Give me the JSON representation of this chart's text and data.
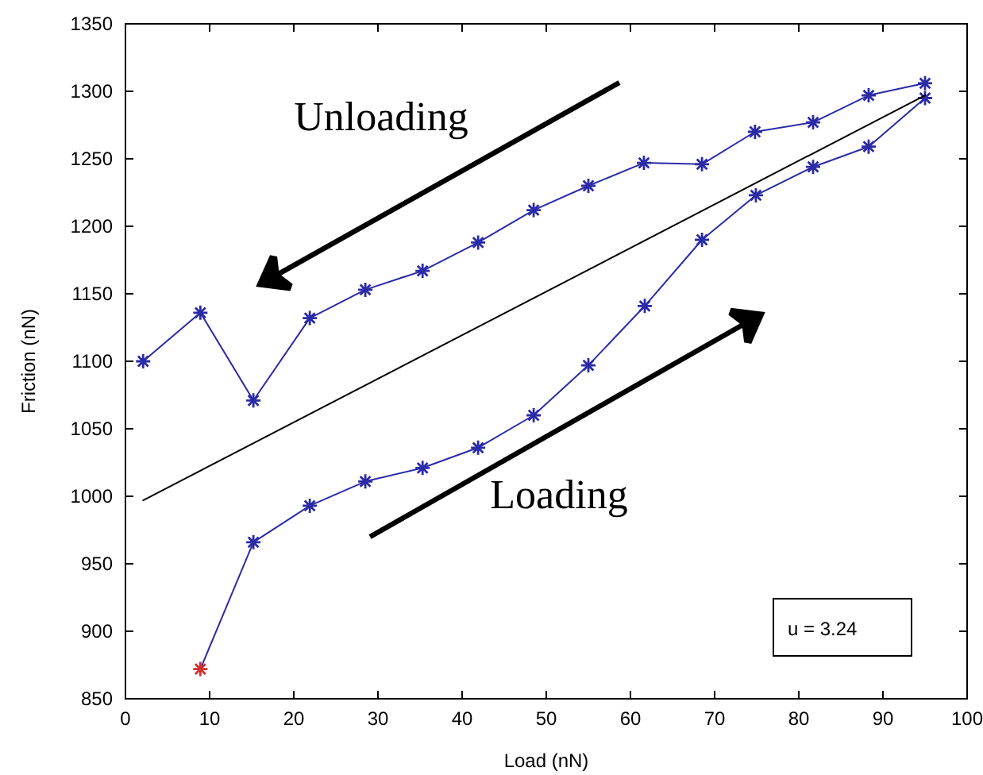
{
  "chart_data": {
    "type": "line",
    "xlabel": "Load (nN)",
    "ylabel": "Friction (nN)",
    "xlim": [
      0,
      100
    ],
    "xticks": [
      0,
      10,
      20,
      30,
      40,
      50,
      60,
      70,
      80,
      90,
      {
        "value": 100,
        "label": "100"
      }
    ],
    "ylim": [
      850,
      1350
    ],
    "yticks": [
      850,
      900,
      950,
      1000,
      1050,
      1100,
      1150,
      1200,
      1250,
      1300,
      1350
    ],
    "grid": false,
    "marker": "cross",
    "line_style": "solid",
    "series": [
      {
        "color": "#2b2ba8",
        "x": [
          2.1,
          8.9,
          15.2,
          21.9,
          28.5,
          35.3,
          41.9,
          48.5,
          55.0,
          61.6,
          68.5,
          74.8,
          81.7,
          88.3,
          95.0
        ],
        "values": [
          1100,
          1136,
          1071,
          1132,
          1153,
          1167,
          1188,
          1212,
          1230,
          1247,
          1246,
          1270,
          1277,
          1297,
          1306
        ]
      },
      {
        "color": "#2b2ba8",
        "colors": [
          "#d03030",
          "#2b2ba8",
          "#2b2ba8",
          "#2b2ba8",
          "#2b2ba8",
          "#2b2ba8",
          "#2b2ba8",
          "#2b2ba8",
          "#2b2ba8",
          "#2b2ba8",
          "#2b2ba8",
          "#2b2ba8",
          "#2b2ba8",
          "#2b2ba8"
        ],
        "x": [
          8.9,
          15.2,
          21.9,
          28.5,
          35.3,
          41.9,
          48.5,
          55.0,
          61.7,
          68.5,
          74.9,
          81.7,
          88.3,
          95.0
        ],
        "values": [
          872,
          966,
          993,
          1011,
          1021,
          1036,
          1060,
          1097,
          1141,
          1190,
          1223,
          1244,
          1259,
          1295
        ]
      },
      {
        "color": "#000000",
        "marker": "none",
        "x": [
          2.1,
          95.0
        ],
        "values": [
          997,
          1297
        ]
      }
    ],
    "annotations": [
      "Unloading",
      "Loading",
      "u = 3.24"
    ]
  }
}
